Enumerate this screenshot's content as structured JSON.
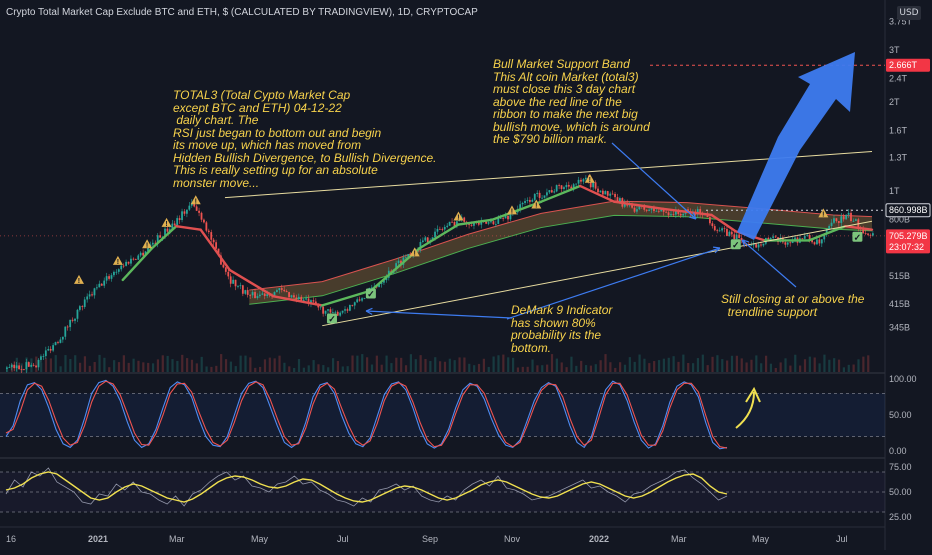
{
  "header": {
    "title": "Crypto Total Market Cap Exclude BTC and ETH, $ (CALCULATED BY TRADINGVIEW), 1D, CRYPTOCAP",
    "currency": "USD"
  },
  "colors": {
    "background": "#131722",
    "up_candle": "#26a69a",
    "down_candle": "#ef5350",
    "annotation_text": "#f7d24c",
    "arrow": "#3d7bf0",
    "stoch_k": "#4f8bf2",
    "stoch_d": "#ef5350",
    "rsi_line": "#f0e050",
    "rsi_aux": "#b0b4c8"
  },
  "annotations": {
    "total3_note": "TOTAL3 (Total Cypto Market Cap\nexcept BTC and ETH) 04-12-22\n daily chart. The\nRSI just began to bottom out and begin\nits move up, which has moved from\nHidden Bullish Divergence, to Bullish Divergence.\nThis is really setting up for an absolute\nmonster move...",
    "band_note": "Bull Market Support Band\nThis Alt coin Market (total3)\nmust close this 3 day chart\nabove the red line of the\nribbon to make the next big\nbullish move, which is around\nthe $790 billion mark.",
    "demark_note": "DeMark 9 Indicator\nhas shown 80%\nprobability its the\nbottom.",
    "trendline_note": "Still closing at or above the\n  trendline support"
  },
  "chart_data": [
    {
      "type": "candlestick",
      "title": "Crypto Total Market Cap Exclude BTC and ETH, $ (CALCULATED BY TRADINGVIEW), 1D, CRYPTOCAP",
      "ylabel": "",
      "y_scale": "log",
      "y_ticks": [
        "3.75T",
        "3T",
        "2.4T",
        "2T",
        "1.6T",
        "1.3T",
        "1T",
        "800B",
        "515B",
        "415B",
        "345B"
      ],
      "x_ticks": [
        "16",
        "2021",
        "Mar",
        "May",
        "Jul",
        "Sep",
        "Nov",
        "2022",
        "Mar",
        "May",
        "Jul"
      ],
      "price_labels": [
        {
          "label": "2.666T",
          "value": 2.666
        },
        {
          "label": "860.998B",
          "value": 0.861
        },
        {
          "label": "705.279B",
          "value": 0.705,
          "sub": "23:07:32"
        }
      ],
      "close_path": [
        [
          0,
          0.25
        ],
        [
          12,
          0.26
        ],
        [
          22,
          0.32
        ],
        [
          34,
          0.44
        ],
        [
          46,
          0.55
        ],
        [
          56,
          0.62
        ],
        [
          66,
          0.74
        ],
        [
          76,
          0.9
        ],
        [
          80,
          0.82
        ],
        [
          86,
          0.62
        ],
        [
          92,
          0.5
        ],
        [
          100,
          0.44
        ],
        [
          112,
          0.46
        ],
        [
          124,
          0.42
        ],
        [
          134,
          0.38
        ],
        [
          144,
          0.42
        ],
        [
          152,
          0.48
        ],
        [
          160,
          0.56
        ],
        [
          170,
          0.66
        ],
        [
          178,
          0.74
        ],
        [
          186,
          0.8
        ],
        [
          196,
          0.77
        ],
        [
          206,
          0.82
        ],
        [
          216,
          0.95
        ],
        [
          226,
          1.02
        ],
        [
          238,
          1.08
        ],
        [
          246,
          0.98
        ],
        [
          256,
          0.88
        ],
        [
          266,
          0.86
        ],
        [
          276,
          0.84
        ],
        [
          286,
          0.85
        ],
        [
          292,
          0.74
        ],
        [
          300,
          0.7
        ],
        [
          306,
          0.64
        ],
        [
          312,
          0.69
        ],
        [
          320,
          0.67
        ],
        [
          328,
          0.7
        ],
        [
          334,
          0.66
        ],
        [
          340,
          0.79
        ],
        [
          346,
          0.82
        ],
        [
          352,
          0.74
        ],
        [
          356,
          0.71
        ]
      ],
      "ribbon_path": [
        [
          100,
          0.44
        ],
        [
          130,
          0.47
        ],
        [
          160,
          0.56
        ],
        [
          190,
          0.68
        ],
        [
          220,
          0.8
        ],
        [
          250,
          0.88
        ],
        [
          280,
          0.87
        ],
        [
          310,
          0.83
        ],
        [
          340,
          0.79
        ],
        [
          356,
          0.78
        ]
      ],
      "ema_path": [
        [
          48,
          0.5
        ],
        [
          60,
          0.64
        ],
        [
          70,
          0.76
        ],
        [
          80,
          0.74
        ],
        [
          92,
          0.54
        ],
        [
          110,
          0.44
        ],
        [
          130,
          0.41
        ],
        [
          150,
          0.46
        ],
        [
          170,
          0.64
        ],
        [
          186,
          0.77
        ],
        [
          200,
          0.8
        ],
        [
          220,
          0.92
        ],
        [
          236,
          1.04
        ],
        [
          250,
          0.92
        ],
        [
          270,
          0.87
        ],
        [
          290,
          0.83
        ],
        [
          300,
          0.73
        ],
        [
          312,
          0.68
        ],
        [
          330,
          0.68
        ],
        [
          345,
          0.76
        ],
        [
          356,
          0.74
        ]
      ],
      "upper_trendline": [
        [
          90,
          0.95
        ],
        [
          356,
          1.36
        ]
      ],
      "lower_trendline": [
        [
          130,
          0.35
        ],
        [
          356,
          0.79
        ]
      ],
      "target_line": 2.666,
      "support_line": 0.861,
      "demark_markers": [
        {
          "x": 30,
          "y": 0.5,
          "kind": "warn"
        },
        {
          "x": 46,
          "y": 0.58,
          "kind": "warn"
        },
        {
          "x": 58,
          "y": 0.66,
          "kind": "warn"
        },
        {
          "x": 66,
          "y": 0.78,
          "kind": "warn"
        },
        {
          "x": 78,
          "y": 0.93,
          "kind": "warn"
        },
        {
          "x": 134,
          "y": 0.37,
          "kind": "check"
        },
        {
          "x": 150,
          "y": 0.45,
          "kind": "check"
        },
        {
          "x": 168,
          "y": 0.62,
          "kind": "warn"
        },
        {
          "x": 186,
          "y": 0.82,
          "kind": "warn"
        },
        {
          "x": 208,
          "y": 0.86,
          "kind": "warn"
        },
        {
          "x": 218,
          "y": 0.9,
          "kind": "warn"
        },
        {
          "x": 240,
          "y": 1.1,
          "kind": "warn"
        },
        {
          "x": 300,
          "y": 0.66,
          "kind": "check"
        },
        {
          "x": 336,
          "y": 0.84,
          "kind": "warn"
        },
        {
          "x": 350,
          "y": 0.7,
          "kind": "check"
        }
      ]
    },
    {
      "type": "line",
      "title": "",
      "y_ticks": [
        "100.00",
        "50.00",
        "0.00"
      ],
      "ylim": [
        0,
        100
      ],
      "guides": [
        80,
        20
      ],
      "series": [
        {
          "color": "#4f8bf2",
          "values": [
            20,
            35,
            70,
            92,
            95,
            85,
            60,
            30,
            10,
            5,
            15,
            45,
            80,
            95,
            98,
            90,
            70,
            40,
            15,
            5,
            10,
            30,
            60,
            88,
            96,
            92,
            75,
            45,
            20,
            8,
            6,
            20,
            50,
            80,
            94,
            97,
            88,
            62,
            35,
            12,
            5,
            12,
            40,
            75,
            92,
            95,
            80,
            50,
            25,
            10,
            6,
            18,
            48,
            78,
            93,
            96,
            85,
            60,
            30,
            10,
            4,
            10,
            30,
            60,
            85,
            94,
            90,
            72,
            45,
            22,
            8,
            5,
            15,
            42,
            70,
            88,
            95,
            90,
            65,
            35,
            12,
            5,
            20,
            55,
            85,
            97,
            92,
            70,
            40,
            15,
            4,
            10,
            35,
            68,
            90,
            96,
            92,
            75,
            40,
            12,
            3,
            5
          ]
        },
        {
          "color": "#ef5350",
          "values": [
            25,
            30,
            55,
            85,
            94,
            90,
            70,
            42,
            18,
            8,
            12,
            35,
            68,
            90,
            97,
            93,
            78,
            52,
            25,
            9,
            8,
            24,
            50,
            80,
            93,
            94,
            82,
            55,
            30,
            12,
            7,
            15,
            40,
            70,
            90,
            96,
            92,
            72,
            45,
            20,
            8,
            10,
            32,
            65,
            88,
            94,
            86,
            60,
            35,
            15,
            8,
            14,
            38,
            70,
            90,
            95,
            90,
            68,
            40,
            16,
            6,
            8,
            24,
            52,
            78,
            92,
            92,
            80,
            55,
            30,
            12,
            6,
            12,
            35,
            62,
            84,
            93,
            92,
            75,
            45,
            20,
            8,
            15,
            45,
            78,
            94,
            94,
            78,
            50,
            22,
            8,
            8,
            28,
            60,
            85,
            94,
            94,
            82,
            50,
            20,
            6,
            4
          ]
        }
      ]
    },
    {
      "type": "line",
      "title": "",
      "y_ticks": [
        "75.00",
        "50.00",
        "25.00"
      ],
      "ylim": [
        20,
        80
      ],
      "guides": [
        70,
        50,
        30
      ],
      "series": [
        {
          "color": "#f0e050",
          "values": [
            52,
            54,
            58,
            64,
            68,
            70,
            68,
            62,
            56,
            50,
            44,
            42,
            44,
            50,
            55,
            58,
            56,
            52,
            48,
            44,
            42,
            40,
            43,
            48,
            54,
            60,
            64,
            66,
            65,
            62,
            58,
            55,
            54,
            56,
            60,
            63,
            62,
            58,
            53,
            48,
            44,
            41,
            40,
            42,
            46,
            50,
            54,
            56,
            55,
            52,
            48,
            44,
            42,
            44,
            48,
            52,
            57,
            60,
            62,
            60,
            56,
            52,
            48,
            45,
            44,
            46,
            50,
            54,
            58,
            60,
            58,
            54,
            50,
            46,
            44,
            46,
            50,
            55,
            60,
            64,
            67,
            68,
            64,
            56,
            50,
            48
          ]
        },
        {
          "color": "#b0b4c8",
          "values": [
            48,
            62,
            55,
            70,
            66,
            74,
            60,
            55,
            50,
            40,
            38,
            48,
            46,
            58,
            52,
            60,
            50,
            48,
            42,
            38,
            46,
            36,
            48,
            52,
            60,
            66,
            70,
            62,
            66,
            56,
            54,
            50,
            58,
            60,
            66,
            58,
            60,
            52,
            48,
            42,
            40,
            36,
            44,
            40,
            52,
            54,
            58,
            52,
            56,
            46,
            42,
            40,
            46,
            42,
            52,
            58,
            62,
            56,
            66,
            54,
            52,
            48,
            42,
            44,
            46,
            50,
            54,
            58,
            62,
            54,
            56,
            50,
            46,
            40,
            48,
            50,
            56,
            60,
            64,
            70,
            72,
            64,
            58,
            50,
            42,
            46
          ]
        }
      ]
    }
  ]
}
